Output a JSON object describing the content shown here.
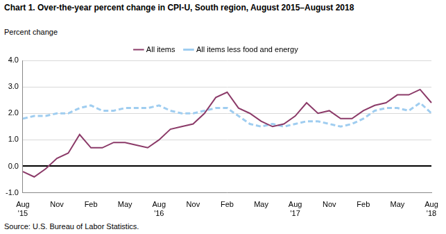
{
  "chart_data": {
    "type": "line",
    "title": "Chart 1. Over-the-year percent change in CPI-U, South region, August 2015–August 2018",
    "y_label": "Percent change",
    "source": "Source: U.S. Bureau of Labor Statistics.",
    "categories": [
      "Aug\n'15",
      null,
      null,
      "Nov",
      null,
      null,
      "Feb",
      null,
      null,
      "May",
      null,
      null,
      "Aug\n'16",
      null,
      null,
      "Nov",
      null,
      null,
      "Feb",
      null,
      null,
      "May",
      null,
      null,
      "Aug\n'17",
      null,
      null,
      "Nov",
      null,
      null,
      "Feb",
      null,
      null,
      "May",
      null,
      null,
      "Aug\n'18"
    ],
    "series": [
      {
        "name": "All items",
        "color": "#8b3a68",
        "line_style": "solid",
        "values": [
          -0.2,
          -0.4,
          -0.1,
          0.3,
          0.5,
          1.2,
          0.7,
          0.7,
          0.9,
          0.9,
          0.8,
          0.7,
          1.0,
          1.4,
          1.5,
          1.6,
          2.0,
          2.6,
          2.8,
          2.2,
          2.0,
          1.7,
          1.5,
          1.6,
          1.9,
          2.4,
          2.0,
          2.1,
          1.8,
          1.8,
          2.1,
          2.3,
          2.4,
          2.7,
          2.7,
          2.9,
          2.4
        ]
      },
      {
        "name": "All items less food and energy",
        "color": "#9fcdf0",
        "line_style": "dashed",
        "values": [
          1.8,
          1.9,
          1.9,
          2.0,
          2.0,
          2.2,
          2.3,
          2.1,
          2.1,
          2.2,
          2.2,
          2.2,
          2.3,
          2.1,
          2.0,
          2.0,
          2.1,
          2.2,
          2.2,
          1.9,
          1.6,
          1.5,
          1.6,
          1.5,
          1.6,
          1.7,
          1.7,
          1.6,
          1.5,
          1.6,
          1.8,
          2.1,
          2.2,
          2.2,
          2.1,
          2.4,
          2.0
        ]
      }
    ],
    "ylim": [
      -1,
      4
    ],
    "yticks": [
      {
        "value": -1,
        "label": "-1.0"
      },
      {
        "value": 0,
        "label": "0.0"
      },
      {
        "value": 1,
        "label": "1.0"
      },
      {
        "value": 2,
        "label": "2.0"
      },
      {
        "value": 3,
        "label": "3.0"
      },
      {
        "value": 4,
        "label": "4.0"
      }
    ],
    "grid": true,
    "legend": "top"
  }
}
